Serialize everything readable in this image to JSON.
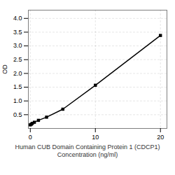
{
  "chart_data": {
    "type": "line",
    "x": [
      0,
      0.156,
      0.313,
      0.625,
      1.25,
      2.5,
      5,
      10,
      20
    ],
    "values": [
      0.13,
      0.155,
      0.185,
      0.225,
      0.295,
      0.41,
      0.7,
      1.57,
      3.38
    ],
    "xlabel": "Human CUB Domain Containing Protein 1 (CDCP1)\nConcentration (ng/ml)",
    "ylabel": "OD",
    "xlim": [
      -0.3,
      21
    ],
    "ylim": [
      0,
      4.3
    ],
    "xticks": [
      0,
      10,
      20
    ],
    "yticks": [
      0.5,
      {
        "value": 1,
        "label": "1.0"
      },
      1.5,
      {
        "value": 2,
        "label": "2.0"
      },
      2.5,
      {
        "value": 3,
        "label": "3.0"
      },
      3.5,
      {
        "value": 4,
        "label": "4.0"
      }
    ],
    "grid": true,
    "marker": "square",
    "line_style": "solid"
  }
}
